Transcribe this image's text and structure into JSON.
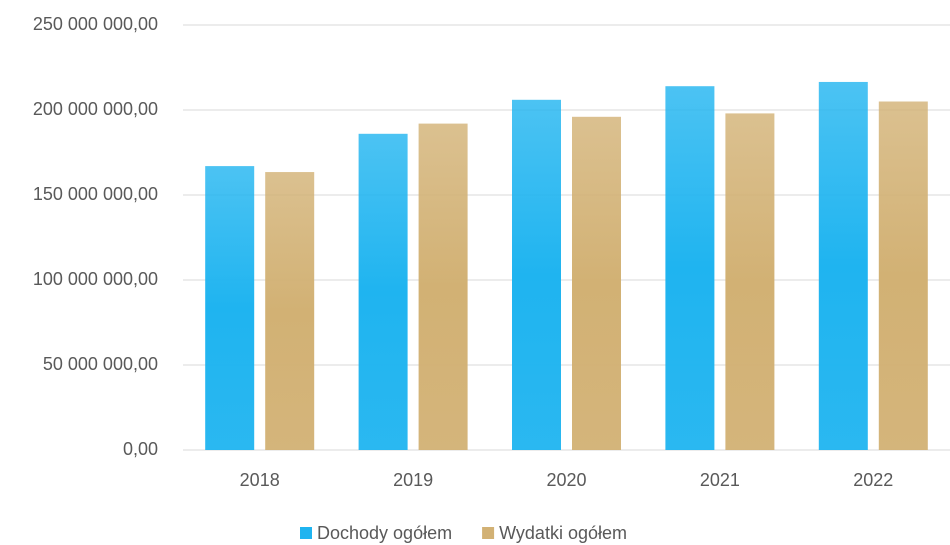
{
  "chart_data": {
    "type": "bar",
    "categories": [
      "2018",
      "2019",
      "2020",
      "2021",
      "2022"
    ],
    "series": [
      {
        "name": "Dochody ogółem",
        "color": "#1fb4f0",
        "values": [
          167000000,
          186000000,
          206000000,
          214000000,
          216500000
        ]
      },
      {
        "name": "Wydatki ogółem",
        "color": "#d2b174",
        "values": [
          163500000,
          192000000,
          196000000,
          198000000,
          205000000
        ]
      }
    ],
    "ylim": [
      0,
      250000000
    ],
    "yticks": [
      {
        "value": 0,
        "label": "0,00"
      },
      {
        "value": 50000000,
        "label": "50 000 000,00"
      },
      {
        "value": 100000000,
        "label": "100 000 000,00"
      },
      {
        "value": 150000000,
        "label": "150 000 000,00"
      },
      {
        "value": 200000000,
        "label": "200 000 000,00"
      },
      {
        "value": 250000000,
        "label": "250 000 000,00"
      }
    ],
    "grid": true,
    "legend": "bottom"
  }
}
